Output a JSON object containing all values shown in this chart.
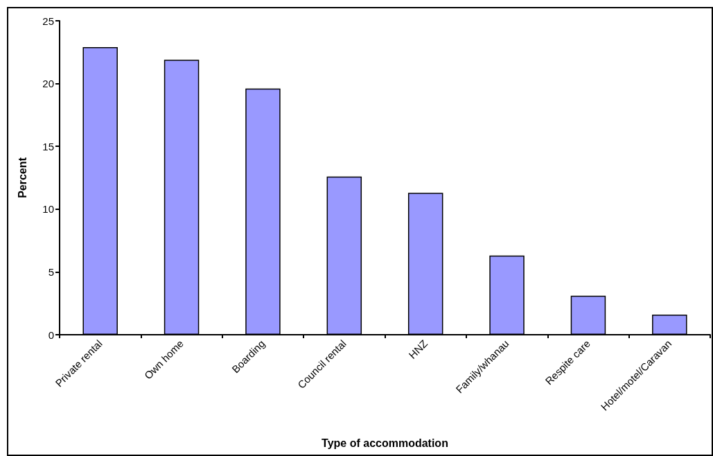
{
  "chart_data": {
    "type": "bar",
    "xlabel": "Type of accommodation",
    "ylabel": "Percent",
    "categories": [
      "Private rental",
      "Own home",
      "Boarding",
      "Council rental",
      "HNZ",
      "Family/whanau",
      "Respite care",
      "Hotel/motel/Caravan"
    ],
    "values": [
      22.9,
      21.9,
      19.6,
      12.6,
      11.3,
      6.3,
      3.1,
      1.6
    ],
    "color": "#9999ff",
    "ylim": [
      0,
      25
    ],
    "yticks": [
      0,
      5,
      10,
      15,
      20,
      25
    ],
    "grid": false
  }
}
